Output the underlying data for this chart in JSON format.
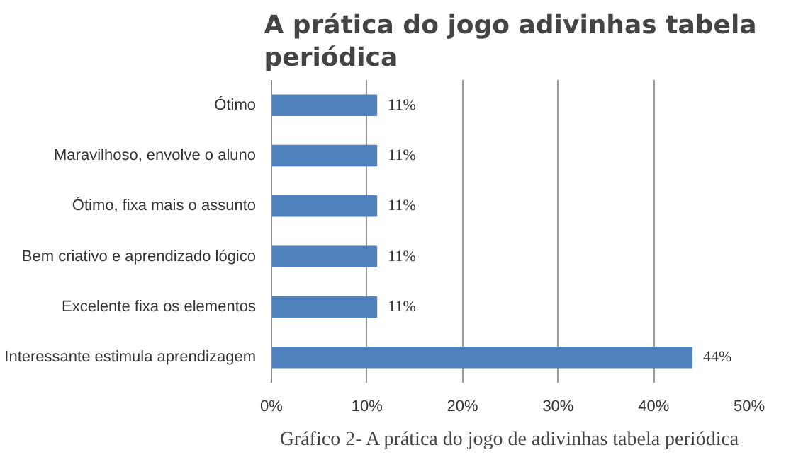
{
  "chart_data": {
    "type": "bar",
    "orientation": "horizontal",
    "title": "A prática do jogo adivinhas tabela periódica",
    "categories": [
      "Ótimo",
      "Maravilhoso, envolve o aluno",
      "Ótimo, fixa mais o assunto",
      "Bem criativo e aprendizado lógico",
      "Excelente fixa os elementos",
      "Interessante estimula aprendizagem"
    ],
    "values": [
      11,
      11,
      11,
      11,
      11,
      44
    ],
    "value_labels": [
      "11%",
      "11%",
      "11%",
      "11%",
      "11%",
      "44%"
    ],
    "color": "#4f81bd",
    "xlim": [
      0,
      50
    ],
    "xticks": [
      {
        "value": 0,
        "label": "0%"
      },
      {
        "value": 10,
        "label": "10%"
      },
      {
        "value": 20,
        "label": "20%"
      },
      {
        "value": 30,
        "label": "30%"
      },
      {
        "value": 40,
        "label": "40%"
      },
      {
        "value": 50,
        "label": "50%"
      }
    ],
    "grid": "x",
    "annotations": [
      "Gráfico 2- A prática do jogo de adivinhas tabela periódica"
    ]
  }
}
